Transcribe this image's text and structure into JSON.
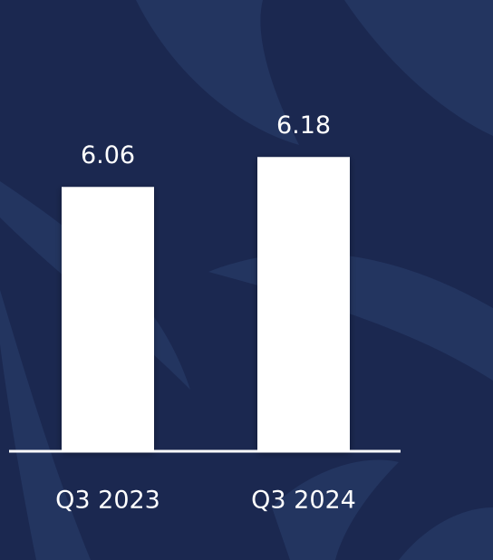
{
  "chart_data": {
    "type": "bar",
    "categories": [
      "Q3 2023",
      "Q3 2024"
    ],
    "values": [
      6.06,
      6.18
    ],
    "color": "#ffffff",
    "ylim": [
      5,
      6.25
    ]
  }
}
